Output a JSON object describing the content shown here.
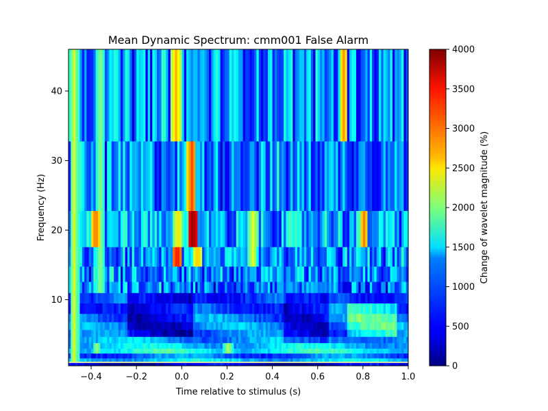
{
  "chart_data": {
    "type": "heatmap",
    "title": "Mean Dynamic Spectrum: cmm001 False Alarm",
    "xlabel": "Time relative to stimulus (s)",
    "ylabel": "Frequency (Hz)",
    "xlim": [
      -0.5,
      1.0
    ],
    "ylim": [
      0.5,
      46
    ],
    "x_ticks": [
      -0.4,
      -0.2,
      0.0,
      0.2,
      0.4,
      0.6,
      0.8,
      1.0
    ],
    "x_tick_labels": [
      "−0.4",
      "−0.2",
      "0.0",
      "0.2",
      "0.4",
      "0.6",
      "0.8",
      "1.0"
    ],
    "y_ticks": [
      10,
      20,
      30,
      40
    ],
    "y_tick_labels": [
      "10",
      "20",
      "30",
      "40"
    ],
    "colormap": "jet",
    "colorbar": {
      "label": "Change of wavelet magnitude (%)",
      "vmin": 0,
      "vmax": 4000,
      "ticks": [
        0,
        500,
        1000,
        1500,
        2000,
        2500,
        3000,
        3500,
        4000
      ],
      "tick_labels": [
        "0",
        "500",
        "1000",
        "1500",
        "2000",
        "2500",
        "3000",
        "3500",
        "4000"
      ]
    },
    "frequency_bands": [
      {
        "f_low": 0.5,
        "f_high": 1.0,
        "base": 300
      },
      {
        "f_low": 1.0,
        "f_high": 1.6,
        "base": 1300
      },
      {
        "f_low": 1.6,
        "f_high": 2.3,
        "base": 900
      },
      {
        "f_low": 2.3,
        "f_high": 3.0,
        "base": 1500
      },
      {
        "f_low": 3.0,
        "f_high": 3.8,
        "base": 1300
      },
      {
        "f_low": 3.8,
        "f_high": 4.7,
        "base": 1100
      },
      {
        "f_low": 4.7,
        "f_high": 5.7,
        "base": 900
      },
      {
        "f_low": 5.7,
        "f_high": 6.8,
        "base": 1000
      },
      {
        "f_low": 6.8,
        "f_high": 8.0,
        "base": 950
      },
      {
        "f_low": 8.0,
        "f_high": 9.5,
        "base": 850
      },
      {
        "f_low": 9.5,
        "f_high": 11.0,
        "base": 800
      },
      {
        "f_low": 11.0,
        "f_high": 12.6,
        "base": 900
      },
      {
        "f_low": 12.6,
        "f_high": 14.8,
        "base": 1000
      },
      {
        "f_low": 14.8,
        "f_high": 17.6,
        "base": 1050
      },
      {
        "f_low": 17.6,
        "f_high": 22.8,
        "base": 1100
      },
      {
        "f_low": 22.8,
        "f_high": 32.8,
        "base": 950
      },
      {
        "f_low": 32.8,
        "f_high": 46.0,
        "base": 1000
      }
    ],
    "peak_events": [
      {
        "t": -0.48,
        "f_low": 1.0,
        "f_high": 46.0,
        "value": 2300
      },
      {
        "t": -0.385,
        "f_low": 17.6,
        "f_high": 22.8,
        "value": 3100
      },
      {
        "t": -0.365,
        "f_low": 11.0,
        "f_high": 46.0,
        "value": 2100
      },
      {
        "t": -0.03,
        "f_low": 32.8,
        "f_high": 46.0,
        "value": 2800
      },
      {
        "t": -0.025,
        "f_low": 14.8,
        "f_high": 17.6,
        "value": 3500
      },
      {
        "t": -0.02,
        "f_low": 17.6,
        "f_high": 22.8,
        "value": 2600
      },
      {
        "t": 0.045,
        "f_low": 17.6,
        "f_high": 22.8,
        "value": 4000
      },
      {
        "t": 0.04,
        "f_low": 22.8,
        "f_high": 32.8,
        "value": 3200
      },
      {
        "t": 0.065,
        "f_low": 14.8,
        "f_high": 17.6,
        "value": 2800
      },
      {
        "t": 0.31,
        "f_low": 14.8,
        "f_high": 22.8,
        "value": 2400
      },
      {
        "t": 0.71,
        "f_low": 32.8,
        "f_high": 46.0,
        "value": 2900
      },
      {
        "t": 0.8,
        "f_low": 17.6,
        "f_high": 22.8,
        "value": 3000
      },
      {
        "t": 0.78,
        "f_low": 6.8,
        "f_high": 8.0,
        "value": 2200
      },
      {
        "t": 0.2,
        "f_low": 2.3,
        "f_high": 3.8,
        "value": 2200
      },
      {
        "t": -0.38,
        "f_low": 2.3,
        "f_high": 3.8,
        "value": 2100
      }
    ]
  }
}
